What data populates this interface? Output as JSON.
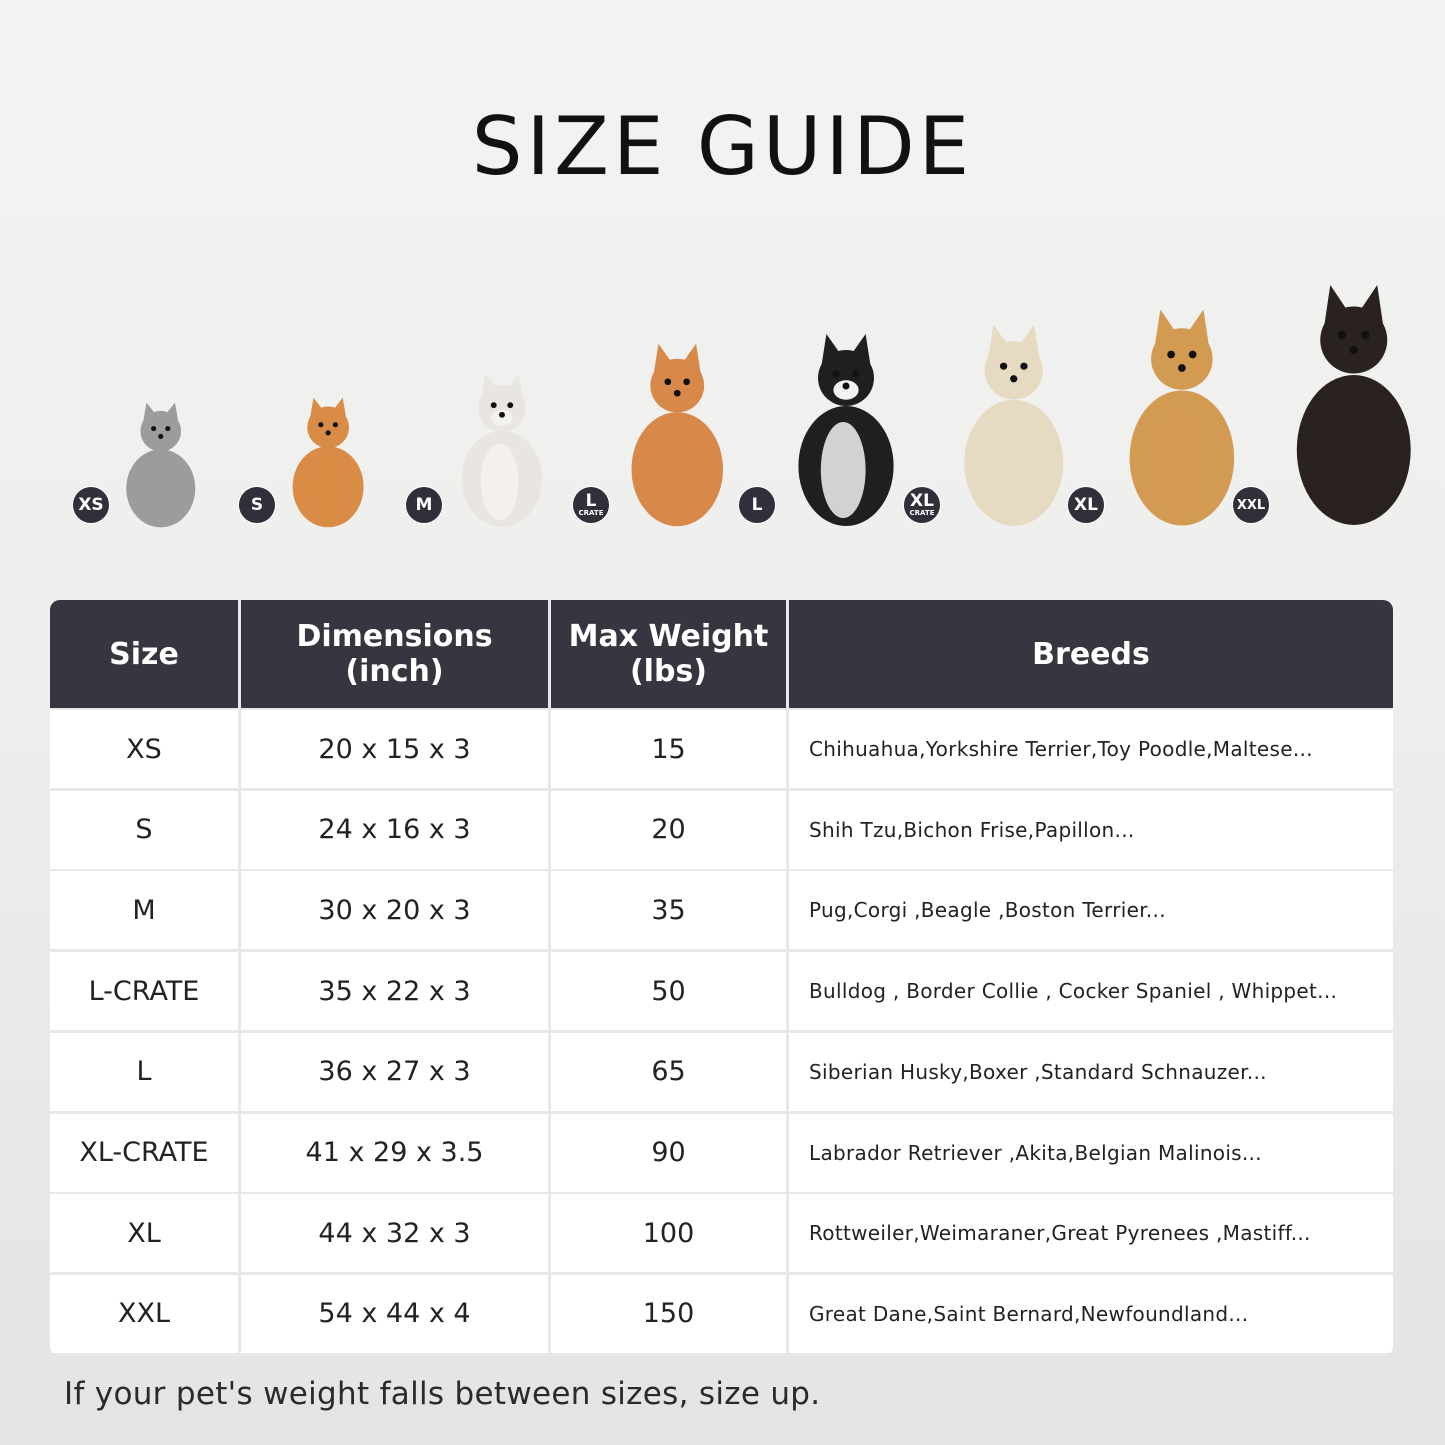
{
  "title": "SIZE GUIDE",
  "badges": [
    {
      "label": "XS",
      "sub": ""
    },
    {
      "label": "S",
      "sub": ""
    },
    {
      "label": "M",
      "sub": ""
    },
    {
      "label": "L",
      "sub": "CRATE"
    },
    {
      "label": "L",
      "sub": ""
    },
    {
      "label": "XL",
      "sub": "CRATE"
    },
    {
      "label": "XL",
      "sub": ""
    },
    {
      "label": "XXL",
      "sub": ""
    }
  ],
  "animals": [
    {
      "name": "cat",
      "color": "#9c9b9e"
    },
    {
      "name": "pomeranian",
      "color": "#d98c45"
    },
    {
      "name": "french-bulldog",
      "color": "#e9e5e1"
    },
    {
      "name": "shiba-inu",
      "color": "#d8894a"
    },
    {
      "name": "border-collie",
      "color": "#1f1f22"
    },
    {
      "name": "labrador",
      "color": "#e6dac2"
    },
    {
      "name": "golden-retriever",
      "color": "#d39a52"
    },
    {
      "name": "doberman",
      "color": "#2a2220"
    }
  ],
  "table": {
    "headers": {
      "size": "Size",
      "dimensions": "Dimensions\n(inch)",
      "weight": "Max Weight\n(lbs)",
      "breeds": "Breeds"
    },
    "rows": [
      {
        "size": "XS",
        "dimensions": "20 x 15 x 3",
        "weight": "15",
        "breeds": "Chihuahua,Yorkshire Terrier,Toy Poodle,Maltese..."
      },
      {
        "size": "S",
        "dimensions": "24 x 16 x 3",
        "weight": "20",
        "breeds": "Shih Tzu,Bichon Frise,Papillon..."
      },
      {
        "size": "M",
        "dimensions": "30 x 20 x 3",
        "weight": "35",
        "breeds": "Pug,Corgi ,Beagle ,Boston Terrier..."
      },
      {
        "size": "L-CRATE",
        "dimensions": "35 x 22 x 3",
        "weight": "50",
        "breeds": "Bulldog , Border Collie , Cocker Spaniel , Whippet..."
      },
      {
        "size": "L",
        "dimensions": "36 x 27 x 3",
        "weight": "65",
        "breeds": "Siberian Husky,Boxer ,Standard Schnauzer..."
      },
      {
        "size": "XL-CRATE",
        "dimensions": "41 x 29 x 3.5",
        "weight": "90",
        "breeds": "Labrador Retriever ,Akita,Belgian Malinois..."
      },
      {
        "size": "XL",
        "dimensions": "44 x 32 x 3",
        "weight": "100",
        "breeds": "Rottweiler,Weimaraner,Great Pyrenees ,Mastiff..."
      },
      {
        "size": "XXL",
        "dimensions": "54 x 44 x 4",
        "weight": "150",
        "breeds": "Great Dane,Saint Bernard,Newfoundland..."
      }
    ]
  },
  "note": "If your pet's weight falls between sizes, size up.",
  "colors": {
    "header": "#35363f",
    "badge": "#2f3039"
  }
}
